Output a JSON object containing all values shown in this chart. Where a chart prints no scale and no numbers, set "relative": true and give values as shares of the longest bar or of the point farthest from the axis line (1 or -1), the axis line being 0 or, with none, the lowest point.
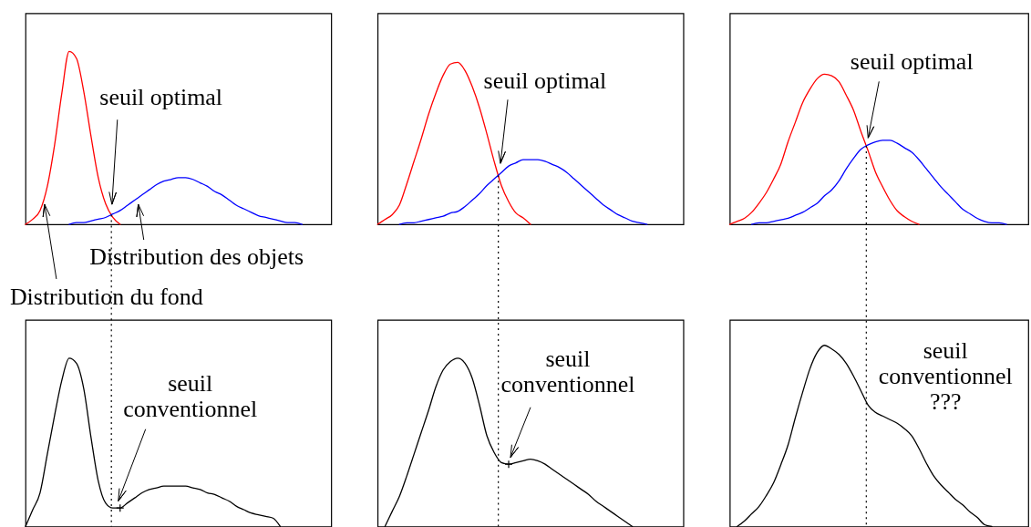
{
  "chart_data": [
    {
      "type": "line",
      "relative": true,
      "tick_labels": false,
      "categories": [
        null,
        null,
        null,
        null,
        null,
        null,
        null,
        null,
        null,
        null,
        null,
        null,
        null,
        null,
        null,
        null,
        null,
        null,
        null,
        null,
        null,
        null,
        null,
        null,
        null,
        null,
        null,
        null,
        null,
        null,
        null,
        null,
        null,
        null,
        null,
        null,
        null,
        null,
        null,
        null,
        null,
        null,
        null
      ],
      "series": [
        {
          "color": "#ff0000",
          "values": [
            0,
            0.03,
            0.08,
            0.22,
            0.46,
            0.76,
            1,
            0.96,
            0.77,
            0.51,
            0.27,
            0.12,
            0.04,
            0,
            null,
            null,
            null,
            null,
            null,
            null,
            null,
            null,
            null,
            null,
            null,
            null,
            null,
            null,
            null,
            null,
            null,
            null,
            null,
            null,
            null,
            null,
            null,
            null,
            null,
            null,
            null,
            null,
            null
          ]
        },
        {
          "color": "#0000ff",
          "values": [
            null,
            null,
            null,
            null,
            null,
            null,
            0,
            0.01,
            0.01,
            0.02,
            0.03,
            0.04,
            0.06,
            0.08,
            0.11,
            0.14,
            0.17,
            0.2,
            0.23,
            0.25,
            0.26,
            0.27,
            0.27,
            0.26,
            0.24,
            0.22,
            0.19,
            0.17,
            0.14,
            0.11,
            0.09,
            0.07,
            0.05,
            0.04,
            0.03,
            0.02,
            0.01,
            0.01,
            0,
            null,
            null,
            null,
            null
          ]
        }
      ],
      "annotations": [
        "seuil optimal",
        "Distribution des objets",
        "Distribution du fond"
      ]
    },
    {
      "type": "line",
      "relative": true,
      "tick_labels": false,
      "categories": [
        null,
        null,
        null,
        null,
        null,
        null,
        null,
        null,
        null,
        null,
        null,
        null,
        null,
        null,
        null,
        null,
        null,
        null,
        null,
        null,
        null,
        null,
        null,
        null,
        null,
        null,
        null,
        null,
        null,
        null,
        null,
        null,
        null,
        null,
        null,
        null,
        null,
        null,
        null,
        null,
        null,
        null,
        null
      ],
      "series": [
        {
          "color": "#ff0000",
          "values": [
            0,
            0.03,
            0.06,
            0.12,
            0.25,
            0.39,
            0.53,
            0.68,
            0.81,
            0.92,
            0.99,
            1,
            0.95,
            0.85,
            0.72,
            0.56,
            0.39,
            0.24,
            0.14,
            0.07,
            0.04,
            0,
            null,
            null,
            null,
            null,
            null,
            null,
            null,
            null,
            null,
            null,
            null,
            null,
            null,
            null,
            null,
            null,
            null,
            null,
            null,
            null,
            null
          ]
        },
        {
          "color": "#0000ff",
          "values": [
            null,
            null,
            null,
            0,
            0.01,
            0.01,
            0.02,
            0.03,
            0.04,
            0.05,
            0.07,
            0.08,
            0.11,
            0.15,
            0.19,
            0.24,
            0.28,
            0.32,
            0.36,
            0.38,
            0.4,
            0.4,
            0.4,
            0.39,
            0.37,
            0.35,
            0.32,
            0.28,
            0.24,
            0.2,
            0.16,
            0.12,
            0.09,
            0.06,
            0.04,
            0.02,
            0.01,
            0,
            null,
            null,
            null,
            null,
            null
          ]
        }
      ],
      "annotations": [
        "seuil optimal"
      ]
    },
    {
      "type": "line",
      "relative": true,
      "tick_labels": false,
      "categories": [
        null,
        null,
        null,
        null,
        null,
        null,
        null,
        null,
        null,
        null,
        null,
        null,
        null,
        null,
        null,
        null,
        null,
        null,
        null,
        null,
        null,
        null,
        null,
        null,
        null,
        null,
        null,
        null,
        null,
        null,
        null,
        null,
        null,
        null,
        null,
        null,
        null,
        null,
        null,
        null,
        null,
        null
      ],
      "series": [
        {
          "color": "#ff0000",
          "values": [
            0,
            0.02,
            0.04,
            0.08,
            0.14,
            0.21,
            0.3,
            0.4,
            0.55,
            0.68,
            0.81,
            0.9,
            0.97,
            1,
            0.99,
            0.95,
            0.86,
            0.76,
            0.62,
            0.49,
            0.35,
            0.25,
            0.16,
            0.09,
            0.05,
            0.02,
            0,
            null,
            null,
            null,
            null,
            null,
            null,
            null,
            null,
            null,
            null,
            null,
            null,
            null,
            null,
            null
          ]
        },
        {
          "color": "#0000ff",
          "values": [
            null,
            null,
            null,
            0,
            0.01,
            0.01,
            0.02,
            0.03,
            0.04,
            0.06,
            0.08,
            0.11,
            0.14,
            0.19,
            0.23,
            0.29,
            0.37,
            0.44,
            0.5,
            0.53,
            0.55,
            0.56,
            0.56,
            0.54,
            0.51,
            0.48,
            0.43,
            0.37,
            0.31,
            0.25,
            0.2,
            0.15,
            0.1,
            0.07,
            0.04,
            0.02,
            0.01,
            0.01,
            0,
            null,
            null,
            null
          ]
        }
      ],
      "annotations": [
        "seuil optimal"
      ]
    },
    {
      "type": "line",
      "relative": true,
      "tick_labels": false,
      "categories": [
        null,
        null,
        null,
        null,
        null,
        null,
        null,
        null,
        null,
        null,
        null,
        null,
        null,
        null,
        null,
        null,
        null,
        null,
        null,
        null,
        null,
        null,
        null,
        null,
        null,
        null,
        null,
        null,
        null,
        null,
        null,
        null,
        null,
        null,
        null,
        null,
        null,
        null,
        null,
        null,
        null,
        null,
        null
      ],
      "series": [
        {
          "color": "#000000",
          "values": [
            0,
            0.1,
            0.2,
            0.43,
            0.66,
            0.87,
            1,
            0.97,
            0.82,
            0.53,
            0.27,
            0.14,
            0.11,
            0.11,
            0.14,
            0.17,
            0.2,
            0.22,
            0.23,
            0.24,
            0.24,
            0.24,
            0.24,
            0.23,
            0.22,
            0.2,
            0.19,
            0.17,
            0.15,
            0.12,
            0.1,
            0.08,
            0.07,
            0.06,
            0.05,
            0,
            null,
            null,
            null,
            null,
            null,
            null,
            null
          ]
        },
        {
          "type": "scatter",
          "marker": "cross",
          "color": "#000000",
          "values": [
            null,
            null,
            null,
            null,
            null,
            null,
            null,
            null,
            null,
            null,
            null,
            null,
            null,
            0.11,
            null,
            null,
            null,
            null,
            null,
            null,
            null,
            null,
            null,
            null,
            null,
            null,
            null,
            null,
            null,
            null,
            null,
            null,
            null,
            null,
            null,
            null,
            null,
            null,
            null,
            null,
            null,
            null,
            null
          ]
        }
      ],
      "annotations": [
        "seuil\nconventionnel"
      ]
    },
    {
      "type": "line",
      "relative": true,
      "tick_labels": false,
      "categories": [
        null,
        null,
        null,
        null,
        null,
        null,
        null,
        null,
        null,
        null,
        null,
        null,
        null,
        null,
        null,
        null,
        null,
        null,
        null,
        null,
        null,
        null,
        null,
        null,
        null,
        null,
        null,
        null,
        null,
        null,
        null,
        null,
        null,
        null,
        null,
        null,
        null,
        null,
        null,
        null,
        null,
        null,
        null
      ],
      "series": [
        {
          "color": "#000000",
          "values": [
            null,
            0,
            0.09,
            0.18,
            0.3,
            0.43,
            0.56,
            0.69,
            0.83,
            0.93,
            0.98,
            1,
            0.97,
            0.88,
            0.72,
            0.54,
            0.44,
            0.38,
            0.37,
            0.38,
            0.39,
            0.4,
            0.39,
            0.37,
            0.34,
            0.31,
            0.28,
            0.25,
            0.22,
            0.19,
            0.15,
            0.12,
            0.09,
            0.06,
            0.03,
            0,
            null,
            null,
            null,
            null,
            null,
            null,
            null
          ]
        },
        {
          "type": "scatter",
          "marker": "cross",
          "color": "#000000",
          "values": [
            null,
            null,
            null,
            null,
            null,
            null,
            null,
            null,
            null,
            null,
            null,
            null,
            null,
            null,
            null,
            null,
            null,
            null,
            0.37,
            null,
            null,
            null,
            null,
            null,
            null,
            null,
            null,
            null,
            null,
            null,
            null,
            null,
            null,
            null,
            null,
            null,
            null,
            null,
            null,
            null,
            null,
            null,
            null
          ]
        }
      ],
      "annotations": [
        "seuil\nconventionnel"
      ]
    },
    {
      "type": "line",
      "relative": true,
      "tick_labels": false,
      "categories": [
        null,
        null,
        null,
        null,
        null,
        null,
        null,
        null,
        null,
        null,
        null,
        null,
        null,
        null,
        null,
        null,
        null,
        null,
        null,
        null,
        null,
        null,
        null,
        null,
        null,
        null,
        null,
        null,
        null,
        null,
        null,
        null,
        null,
        null,
        null,
        null,
        null,
        null,
        null,
        null,
        null,
        null
      ],
      "series": [
        {
          "color": "#000000",
          "values": [
            null,
            0,
            0.03,
            0.07,
            0.11,
            0.17,
            0.24,
            0.34,
            0.45,
            0.6,
            0.74,
            0.87,
            0.96,
            1,
            0.98,
            0.95,
            0.9,
            0.83,
            0.75,
            0.67,
            0.63,
            0.61,
            0.59,
            0.57,
            0.54,
            0.5,
            0.43,
            0.35,
            0.28,
            0.23,
            0.19,
            0.15,
            0.12,
            0.08,
            0.05,
            0.01,
            0,
            null,
            null,
            null,
            null,
            null
          ]
        }
      ],
      "annotations": [
        "seuil\nconventionnel\n???"
      ]
    }
  ]
}
